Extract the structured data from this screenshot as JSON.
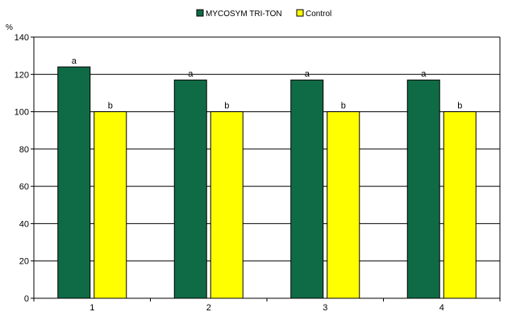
{
  "chart_data": {
    "type": "bar",
    "title": "",
    "xlabel": "",
    "ylabel": "%",
    "ylim": [
      0,
      140
    ],
    "yticks": [
      0,
      20,
      40,
      60,
      80,
      100,
      120,
      140
    ],
    "categories": [
      "1",
      "2",
      "3",
      "4"
    ],
    "series": [
      {
        "name": "MYCOSYM TRI-TON",
        "color": "#0f6b45",
        "values": [
          124,
          117,
          117,
          117
        ],
        "labels": [
          "a",
          "a",
          "a",
          "a"
        ]
      },
      {
        "name": "Control",
        "color": "#ffff00",
        "values": [
          100,
          100,
          100,
          100
        ],
        "labels": [
          "b",
          "b",
          "b",
          "b"
        ]
      }
    ],
    "grid": true,
    "legend": "top"
  }
}
